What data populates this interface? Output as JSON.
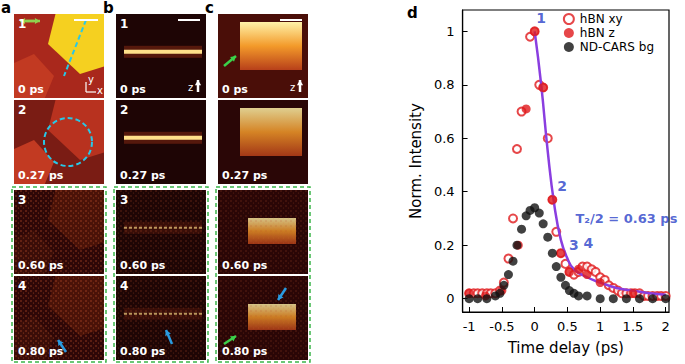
{
  "panels": [
    {
      "label": "a",
      "axes": [
        "x",
        "y"
      ],
      "frames": [
        {
          "number": "1",
          "time": "0 ps"
        },
        {
          "number": "2",
          "time": "0.27 ps"
        },
        {
          "number": "3",
          "time": "0.60 ps"
        },
        {
          "number": "4",
          "time": "0.80 ps"
        }
      ]
    },
    {
      "label": "b",
      "axes": [
        "z"
      ],
      "frames": [
        {
          "number": "1",
          "time": "0 ps"
        },
        {
          "number": "2",
          "time": "0.27 ps"
        },
        {
          "number": "3",
          "time": "0.60 ps"
        },
        {
          "number": "4",
          "time": "0.80 ps"
        }
      ]
    },
    {
      "label": "c",
      "axes": [
        "z"
      ],
      "frames": [
        {
          "number": "",
          "time": "0 ps"
        },
        {
          "number": "",
          "time": "0.27 ps"
        },
        {
          "number": "",
          "time": "0.60 ps"
        },
        {
          "number": "",
          "time": "0.80 ps"
        }
      ]
    }
  ],
  "chart_data": {
    "type": "scatter",
    "title": "d",
    "x_label": "Time delay (ps)",
    "y_label": "Norm. Intensity",
    "xlim": [
      -1.1,
      2.05
    ],
    "ylim": [
      -0.05,
      1.08
    ],
    "xticks": [
      -1,
      -0.5,
      0,
      0.5,
      1,
      1.5,
      2
    ],
    "yticks": [
      0,
      0.2,
      0.4,
      0.6,
      0.8,
      1
    ],
    "grid": false,
    "legend": "upper right",
    "series": [
      {
        "name": "hBN xy",
        "type": "scatter",
        "marker": "open_circle",
        "color": "#e0191b",
        "x": [
          -1,
          -0.93,
          -0.87,
          -0.8,
          -0.73,
          -0.67,
          -0.6,
          -0.53,
          -0.47,
          -0.4,
          -0.33,
          -0.27,
          -0.2,
          -0.07,
          0,
          0.07,
          0.13,
          0.2,
          0.27,
          0.33,
          0.4,
          0.47,
          0.53,
          0.6,
          0.67,
          0.73,
          0.8,
          0.87,
          0.93,
          1.0,
          1.07,
          1.13,
          1.2,
          1.27,
          1.33,
          1.4,
          1.47,
          1.53,
          1.6,
          1.67,
          1.73,
          1.8,
          1.87,
          1.93,
          2.0
        ],
        "values": [
          0.02,
          0.02,
          0.02,
          0.02,
          0.02,
          0.02,
          0.02,
          0.03,
          0.06,
          0.15,
          0.3,
          0.56,
          0.7,
          0.98,
          1.0,
          0.8,
          0.79,
          0.6,
          0.37,
          0.25,
          0.17,
          0.13,
          0.1,
          0.09,
          0.1,
          0.12,
          0.12,
          0.11,
          0.1,
          0.08,
          0.07,
          0.05,
          0.04,
          0.03,
          0.02,
          0.02,
          0.02,
          0.02,
          0.02,
          0.01,
          0.01,
          0.01,
          0.01,
          0.01,
          0.01
        ]
      },
      {
        "name": "hBN z",
        "type": "scatter",
        "marker": "circle",
        "color": "#e0191b",
        "x": [
          -1,
          -0.75,
          -0.5,
          -0.25,
          -0.13,
          0,
          0.13,
          0.27,
          0.4,
          0.53,
          0.67,
          0.8,
          1.0,
          1.5
        ],
        "values": [
          0.02,
          0.01,
          0.03,
          0.2,
          0.71,
          1.0,
          0.79,
          0.37,
          0.17,
          0.1,
          0.11,
          0.09,
          0.06,
          0.02
        ]
      },
      {
        "name": "ND-CARS bg",
        "type": "scatter",
        "marker": "circle",
        "color": "#111111",
        "x": [
          -1,
          -0.87,
          -0.73,
          -0.6,
          -0.53,
          -0.47,
          -0.4,
          -0.33,
          -0.27,
          -0.2,
          -0.13,
          -0.07,
          0,
          0.07,
          0.13,
          0.2,
          0.27,
          0.33,
          0.4,
          0.47,
          0.53,
          0.6,
          0.67,
          0.8,
          1.0,
          1.2,
          1.4,
          1.6,
          1.8,
          2.0
        ],
        "values": [
          0,
          0,
          0,
          0.01,
          0.02,
          0.05,
          0.09,
          0.14,
          0.2,
          0.26,
          0.31,
          0.33,
          0.34,
          0.32,
          0.28,
          0.23,
          0.17,
          0.12,
          0.08,
          0.05,
          0.03,
          0.02,
          0.01,
          0.01,
          0,
          0,
          0,
          0,
          0,
          0
        ]
      },
      {
        "type": "line",
        "line_style": "solid",
        "color": "#8a3ee0",
        "x": [
          0,
          0.1,
          0.2,
          0.3,
          0.4,
          0.5,
          0.6,
          0.8,
          1.0,
          1.25,
          1.5,
          1.75,
          2.0
        ],
        "values": [
          1.0,
          0.8,
          0.55,
          0.35,
          0.22,
          0.15,
          0.11,
          0.08,
          0.06,
          0.04,
          0.03,
          0.02,
          0.015
        ]
      }
    ],
    "annotations": [
      {
        "text": "1",
        "x": 0.1,
        "y": 1.05,
        "color": "#2a3fc8"
      },
      {
        "text": "2",
        "x": 0.42,
        "y": 0.42,
        "color": "#2a3fc8"
      },
      {
        "text": "3",
        "x": 0.6,
        "y": 0.2,
        "color": "#2a3fc8"
      },
      {
        "text": "4",
        "x": 0.82,
        "y": 0.21,
        "color": "#2a3fc8"
      },
      {
        "text": "T₂/2 = 0.63 ps",
        "x": 1.4,
        "y": 0.3,
        "color": "#2a3fc8"
      }
    ]
  }
}
